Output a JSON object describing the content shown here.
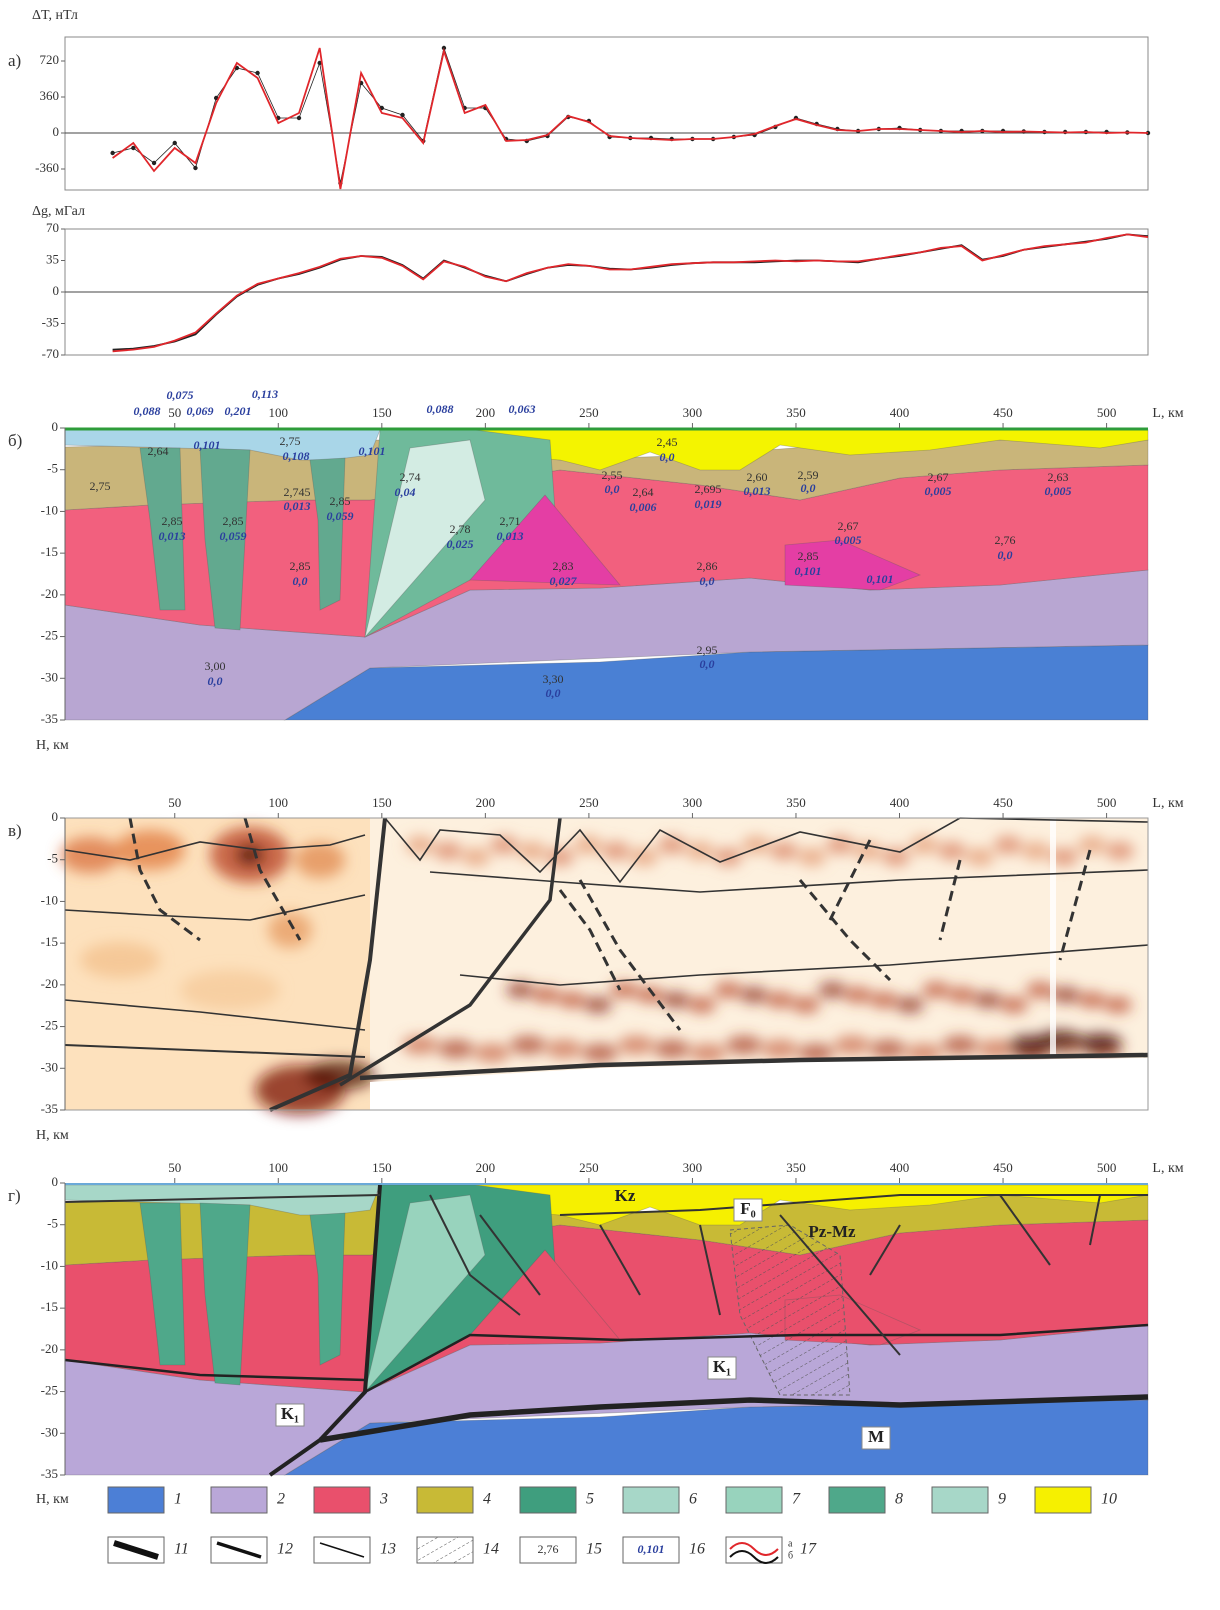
{
  "chart_data": [
    {
      "type": "line",
      "panel": "а)",
      "y_label": "ΔT, нТл",
      "x": [
        20,
        30,
        40,
        50,
        60,
        70,
        80,
        90,
        100,
        110,
        120,
        130,
        140,
        150,
        160,
        170,
        180,
        190,
        200,
        210,
        220,
        230,
        240,
        250,
        260,
        270,
        280,
        290,
        300,
        310,
        320,
        330,
        340,
        350,
        360,
        370,
        380,
        390,
        400,
        410,
        420,
        430,
        440,
        450,
        460,
        470,
        480,
        490,
        500,
        510,
        520
      ],
      "xlim": [
        -3,
        520
      ],
      "ylim": [
        -570,
        960
      ],
      "yticks": [
        -360,
        0,
        360,
        720
      ],
      "series": [
        {
          "color": "#222222",
          "style": "dots",
          "values": [
            -200,
            -150,
            -300,
            -100,
            -350,
            350,
            650,
            600,
            150,
            150,
            700,
            -500,
            500,
            250,
            180,
            -80,
            850,
            250,
            250,
            -60,
            -80,
            -30,
            160,
            120,
            -40,
            -50,
            -50,
            -60,
            -60,
            -60,
            -40,
            -20,
            60,
            150,
            90,
            40,
            20,
            40,
            50,
            30,
            20,
            20,
            20,
            20,
            15,
            10,
            10,
            10,
            10,
            5,
            0
          ]
        },
        {
          "color": "#e0262b",
          "style": "line",
          "values": [
            -250,
            -100,
            -380,
            -150,
            -300,
            300,
            700,
            550,
            100,
            200,
            850,
            -560,
            600,
            200,
            150,
            -100,
            820,
            200,
            280,
            -80,
            -70,
            -20,
            170,
            110,
            -30,
            -50,
            -60,
            -70,
            -60,
            -60,
            -40,
            -10,
            70,
            140,
            80,
            30,
            20,
            40,
            40,
            30,
            20,
            10,
            20,
            10,
            15,
            10,
            5,
            10,
            0,
            5,
            0
          ]
        }
      ]
    },
    {
      "type": "line",
      "y_label": "Δg, мГал",
      "x": [
        20,
        30,
        40,
        50,
        60,
        70,
        80,
        90,
        100,
        110,
        120,
        130,
        140,
        150,
        160,
        170,
        180,
        190,
        200,
        210,
        220,
        230,
        240,
        250,
        260,
        270,
        280,
        290,
        300,
        310,
        320,
        330,
        340,
        350,
        360,
        370,
        380,
        390,
        400,
        410,
        420,
        430,
        440,
        450,
        460,
        470,
        480,
        490,
        500,
        510,
        520
      ],
      "xlim": [
        -3,
        520
      ],
      "ylim": [
        -70,
        70
      ],
      "yticks": [
        -70,
        -35,
        0,
        35,
        70
      ],
      "series": [
        {
          "color": "#222222",
          "style": "line",
          "values": [
            -64,
            -63,
            -60,
            -55,
            -47,
            -25,
            -5,
            8,
            15,
            20,
            27,
            36,
            40,
            39,
            30,
            15,
            35,
            27,
            18,
            12,
            20,
            27,
            30,
            29,
            26,
            25,
            27,
            30,
            32,
            33,
            33,
            33,
            34,
            35,
            35,
            34,
            33,
            37,
            40,
            44,
            48,
            52,
            36,
            40,
            47,
            50,
            53,
            56,
            59,
            64,
            62
          ]
        },
        {
          "color": "#e0262b",
          "style": "line",
          "values": [
            -66,
            -64,
            -61,
            -54,
            -45,
            -24,
            -4,
            9,
            15,
            21,
            28,
            37,
            40,
            38,
            29,
            14,
            34,
            28,
            17,
            12,
            21,
            27,
            31,
            29,
            25,
            25,
            28,
            31,
            32,
            33,
            33,
            34,
            35,
            34,
            35,
            34,
            34,
            37,
            41,
            44,
            49,
            51,
            35,
            41,
            47,
            51,
            53,
            55,
            60,
            64,
            61
          ]
        }
      ]
    },
    {
      "type": "section",
      "panel": "б)",
      "x_label": "L, км",
      "y_label": "H, км",
      "xlim": [
        -3,
        520
      ],
      "ylim": [
        -35,
        0
      ],
      "xticks": [
        50,
        100,
        150,
        200,
        250,
        300,
        350,
        400,
        450,
        500
      ],
      "yticks": [
        0,
        -5,
        -10,
        -15,
        -20,
        -25,
        -30,
        -35
      ],
      "densities": [
        "2,64",
        "2,75",
        "2,75",
        "2,745",
        "2,85",
        "2,85",
        "2,85",
        "2,74",
        "2,78",
        "2,71",
        "2,45",
        "2,55",
        "2,64",
        "2,695",
        "2,60",
        "2,59",
        "2,67",
        "2,67",
        "2,63",
        "2,83",
        "2,86",
        "2,85",
        "2,85",
        "2,76",
        "2,95",
        "3,00",
        "3,30"
      ],
      "susceptibilities": [
        "0,075",
        "0,113",
        "0,088",
        "0,069",
        "0,201",
        "0,088",
        "0,063",
        "0,101",
        "0,108",
        "0,101",
        "0,013",
        "0,013",
        "0,059",
        "0,059",
        "0,04",
        "0,025",
        "0,013",
        "0,0",
        "0,0",
        "0,006",
        "0,019",
        "0,013",
        "0,0",
        "0,005",
        "0,005",
        "0,005",
        "0,027",
        "0,0",
        "0,0",
        "0,101",
        "0,101",
        "0,0",
        "0,0",
        "0,0",
        "0,0"
      ]
    },
    {
      "type": "section",
      "panel": "в)",
      "x_label": "L, км",
      "y_label": "H, км",
      "xlim": [
        -3,
        520
      ],
      "ylim": [
        -35,
        0
      ],
      "xticks": [
        50,
        100,
        150,
        200,
        250,
        300,
        350,
        400,
        450,
        500
      ],
      "yticks": [
        0,
        -5,
        -10,
        -15,
        -20,
        -25,
        -30,
        -35
      ]
    },
    {
      "type": "section",
      "panel": "г)",
      "x_label": "L, км",
      "y_label": "H, км",
      "xlim": [
        -3,
        520
      ],
      "ylim": [
        -35,
        0
      ],
      "xticks": [
        50,
        100,
        150,
        200,
        250,
        300,
        350,
        400,
        450,
        500
      ],
      "yticks": [
        0,
        -5,
        -10,
        -15,
        -20,
        -25,
        -30,
        -35
      ],
      "labels": [
        "Kz",
        "F₀",
        "Pz-Mz",
        "K₁",
        "K₁",
        "M"
      ],
      "legend": [
        "1",
        "2",
        "3",
        "4",
        "5",
        "6",
        "7",
        "8",
        "9",
        "10",
        "11",
        "12",
        "13",
        "14",
        "15",
        "16",
        "17"
      ],
      "legend_samples": [
        "2,76",
        "0,101"
      ],
      "legend_parts": [
        "а",
        "б"
      ]
    }
  ]
}
